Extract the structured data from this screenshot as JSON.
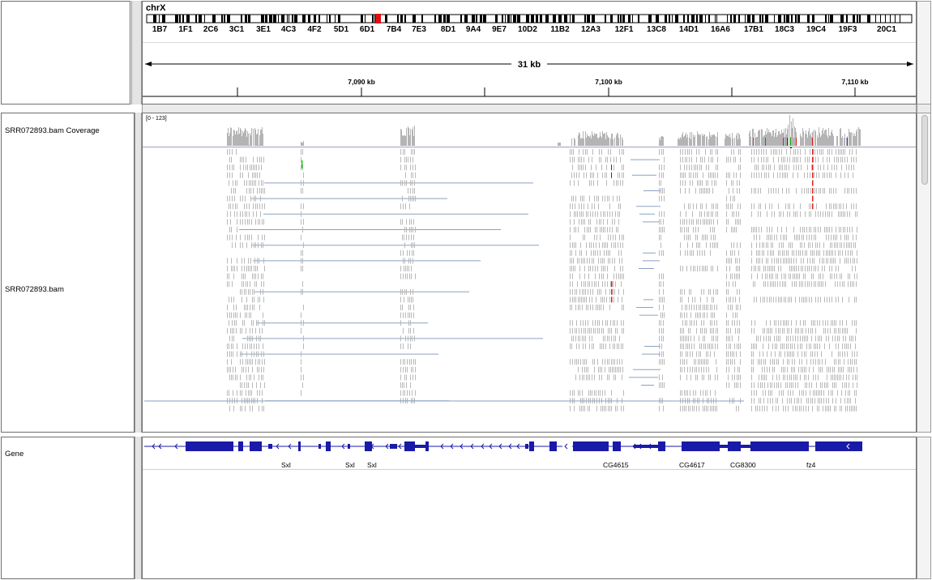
{
  "header": {
    "chromosome": "chrX",
    "cytobands": [
      "1B7",
      "1F1",
      "2C6",
      "3C1",
      "3E1",
      "4C3",
      "4F2",
      "5D1",
      "6D1",
      "7B4",
      "7E3",
      "8D1",
      "9A4",
      "9E7",
      "10D2",
      "11B2",
      "12A3",
      "12F1",
      "13C8",
      "14D1",
      "16A6",
      "17B1",
      "18C3",
      "19C4",
      "19F3",
      "20C1"
    ],
    "span_label": "31 kb",
    "ruler_ticks": [
      "7,090 kb",
      "7,100 kb",
      "7,110 kb"
    ]
  },
  "tracks": {
    "coverage_name": "SRR072893.bam Coverage",
    "coverage_range": "[0 - 123]",
    "alignment_name": "SRR072893.bam",
    "gene_track_name": "Gene"
  },
  "genes": [
    "Sxl",
    "Sxl",
    "Sxl",
    "CG4615",
    "CG4617",
    "CG8300",
    "fz4"
  ],
  "colors": {
    "coverage": "#b4b4b4",
    "read": "#b9b9b9",
    "junction": "#8aa2c0",
    "gene": "#1a1aa8",
    "mismatch_red": "#d22",
    "mismatch_green": "#2c2",
    "mismatch_blue": "#22c",
    "ideogram_marker": "#e01010"
  }
}
